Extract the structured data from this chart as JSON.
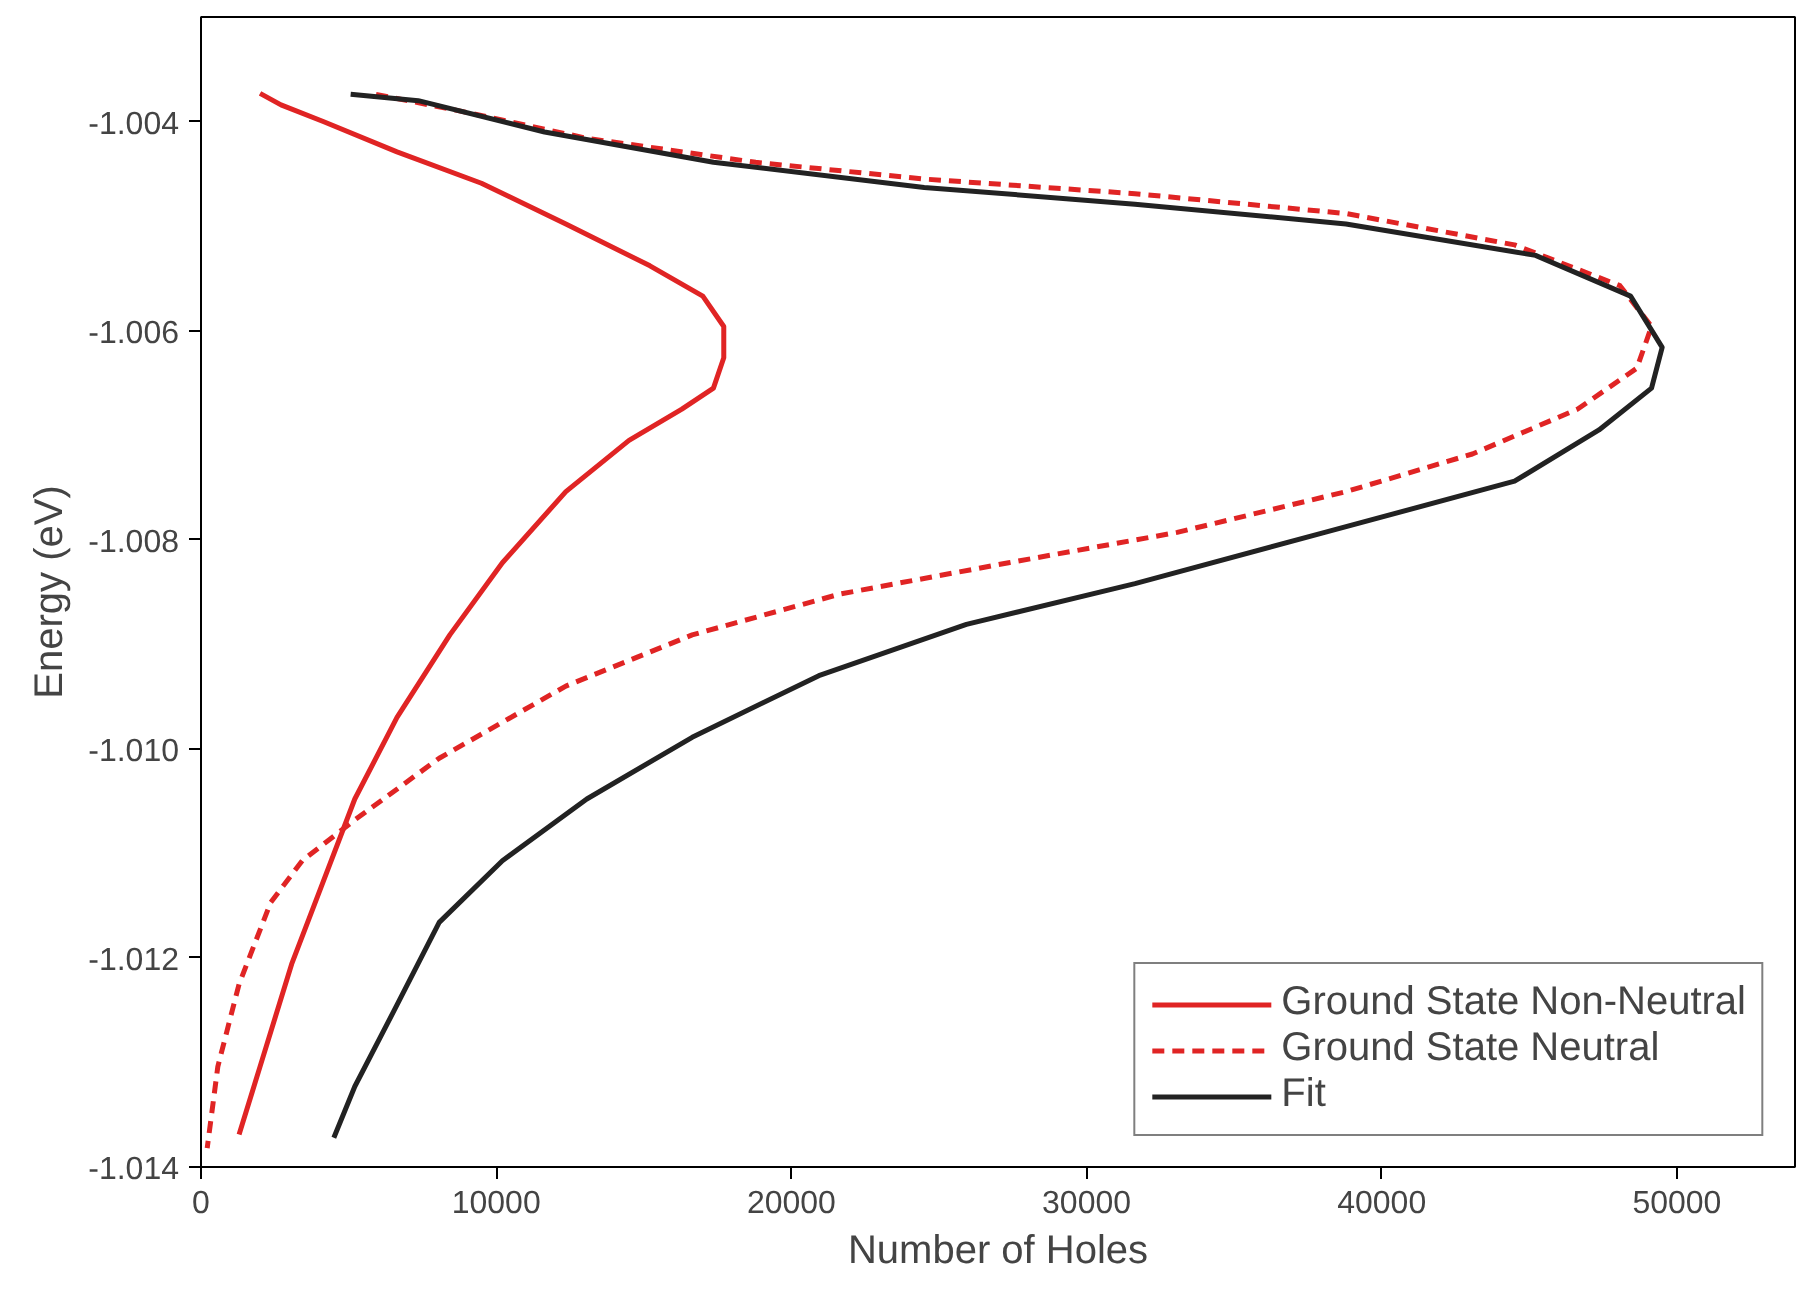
{
  "chart_data": {
    "type": "line",
    "xlabel": "Number of Holes",
    "ylabel": "Energy (eV)",
    "xlim": [
      0,
      54000
    ],
    "ylim": [
      -1.014,
      -1.003
    ],
    "xticks": [
      0,
      10000,
      20000,
      30000,
      40000,
      50000
    ],
    "yticks": [
      {
        "value": -1.004,
        "label": "-1.004"
      },
      {
        "value": -1.006,
        "label": "-1.006"
      },
      {
        "value": -1.008,
        "label": "-1.008"
      },
      {
        "value": -1.01,
        "label": "-1.010"
      },
      {
        "value": -1.012,
        "label": "-1.012"
      },
      {
        "value": -1.014,
        "label": "-1.014"
      }
    ],
    "grid": false,
    "legend": "bottom right",
    "series": [
      {
        "name": "Ground State Non-Neutral",
        "color": "#e02424",
        "line_style": "solid",
        "x": [
          1290,
          2000,
          3070,
          4140,
          5210,
          6640,
          8430,
          10210,
          12360,
          14500,
          16290,
          17360,
          17710,
          17710,
          17000,
          15210,
          12360,
          9500,
          6640,
          4140,
          2710,
          2000
        ],
        "values": [
          -1.01369,
          -1.01304,
          -1.01206,
          -1.01127,
          -1.01048,
          -1.0097,
          -1.00891,
          -1.00822,
          -1.00754,
          -1.00705,
          -1.00675,
          -1.00655,
          -1.00626,
          -1.00596,
          -1.00567,
          -1.00538,
          -1.00498,
          -1.00459,
          -1.00429,
          -1.004,
          -1.00384,
          -1.00373
        ]
      },
      {
        "name": "Ground State Neutral",
        "color": "#e02424",
        "line_style": "dashed",
        "x": [
          5930,
          8790,
          13070,
          18790,
          24500,
          31640,
          38790,
          44500,
          48070,
          49140,
          48640,
          46640,
          43070,
          38790,
          33070,
          27360,
          21640,
          16640,
          12360,
          8070,
          5210,
          3430,
          2360,
          1290,
          570,
          210
        ],
        "values": [
          -1.00374,
          -1.0039,
          -1.00416,
          -1.00439,
          -1.00455,
          -1.00469,
          -1.00488,
          -1.00518,
          -1.00557,
          -1.00596,
          -1.00636,
          -1.00675,
          -1.00718,
          -1.00754,
          -1.00793,
          -1.00822,
          -1.00852,
          -1.00891,
          -1.0094,
          -1.01009,
          -1.01068,
          -1.01107,
          -1.01147,
          -1.01225,
          -1.01304,
          -1.01382
        ]
      },
      {
        "name": "Fit",
        "color": "#222222",
        "line_style": "solid",
        "x": [
          5070,
          7360,
          11640,
          17360,
          24500,
          31640,
          38790,
          45210,
          48430,
          49500,
          49140,
          47360,
          44500,
          38070,
          31640,
          25930,
          20930,
          16640,
          13070,
          10210,
          8070,
          6640,
          5210,
          4500
        ],
        "values": [
          -1.00374,
          -1.0038,
          -1.0041,
          -1.00439,
          -1.00463,
          -1.00479,
          -1.00498,
          -1.00528,
          -1.00567,
          -1.00616,
          -1.00655,
          -1.00695,
          -1.00744,
          -1.00793,
          -1.00842,
          -1.00881,
          -1.0093,
          -1.00989,
          -1.01048,
          -1.01107,
          -1.01166,
          -1.01245,
          -1.01323,
          -1.01372
        ]
      }
    ]
  }
}
